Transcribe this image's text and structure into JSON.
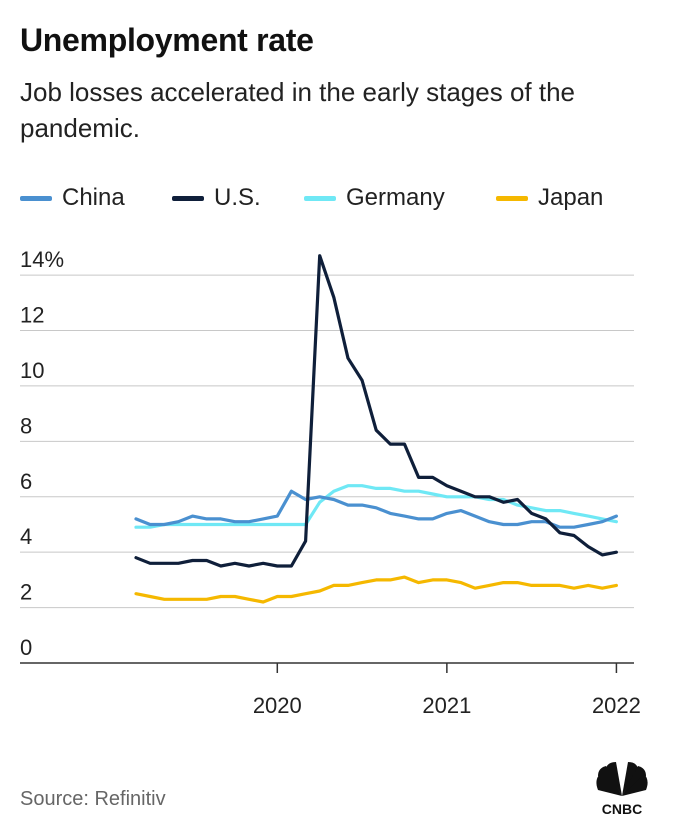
{
  "header": {
    "title": "Unemployment rate",
    "subtitle": "Job losses accelerated in the early stages of the pandemic."
  },
  "footer": {
    "source": "Source: Refinitiv",
    "logo_text": "CNBC"
  },
  "chart_data": {
    "type": "line",
    "title": "Unemployment rate",
    "subtitle": "Job losses accelerated in the early stages of the pandemic.",
    "x_unit": "month",
    "x": [
      "2019-03",
      "2019-04",
      "2019-05",
      "2019-06",
      "2019-07",
      "2019-08",
      "2019-09",
      "2019-10",
      "2019-11",
      "2019-12",
      "2020-01",
      "2020-02",
      "2020-03",
      "2020-04",
      "2020-05",
      "2020-06",
      "2020-07",
      "2020-08",
      "2020-09",
      "2020-10",
      "2020-11",
      "2020-12",
      "2021-01",
      "2021-02",
      "2021-03",
      "2021-04",
      "2021-05",
      "2021-06",
      "2021-07",
      "2021-08",
      "2021-09",
      "2021-10",
      "2021-11",
      "2021-12",
      "2022-01"
    ],
    "x_ticks": [
      {
        "value": "2020-01",
        "label": "2020"
      },
      {
        "value": "2021-01",
        "label": "2021"
      },
      {
        "value": "2022-01",
        "label": "2022"
      }
    ],
    "y_ticks": [
      0,
      2,
      4,
      6,
      8,
      10,
      12,
      14
    ],
    "y_tick_labels": [
      "0",
      "2",
      "4",
      "6",
      "8",
      "10",
      "12",
      "14%"
    ],
    "ylim": [
      0,
      14.4
    ],
    "grid": true,
    "legend_position": "top",
    "series": [
      {
        "name": "China",
        "color": "#4a90d0",
        "values": [
          5.2,
          5.0,
          5.0,
          5.1,
          5.3,
          5.2,
          5.2,
          5.1,
          5.1,
          5.2,
          5.3,
          6.2,
          5.9,
          6.0,
          5.9,
          5.7,
          5.7,
          5.6,
          5.4,
          5.3,
          5.2,
          5.2,
          5.4,
          5.5,
          5.3,
          5.1,
          5.0,
          5.0,
          5.1,
          5.1,
          4.9,
          4.9,
          5.0,
          5.1,
          5.3
        ]
      },
      {
        "name": "U.S.",
        "color": "#0f1f3a",
        "values": [
          3.8,
          3.6,
          3.6,
          3.6,
          3.7,
          3.7,
          3.5,
          3.6,
          3.5,
          3.6,
          3.5,
          3.5,
          4.4,
          14.7,
          13.2,
          11.0,
          10.2,
          8.4,
          7.9,
          7.9,
          6.7,
          6.7,
          6.4,
          6.2,
          6.0,
          6.0,
          5.8,
          5.9,
          5.4,
          5.2,
          4.7,
          4.6,
          4.2,
          3.9,
          4.0
        ]
      },
      {
        "name": "Germany",
        "color": "#6fe8f5",
        "values": [
          4.9,
          4.9,
          5.0,
          5.0,
          5.0,
          5.0,
          5.0,
          5.0,
          5.0,
          5.0,
          5.0,
          5.0,
          5.0,
          5.8,
          6.2,
          6.4,
          6.4,
          6.3,
          6.3,
          6.2,
          6.2,
          6.1,
          6.0,
          6.0,
          6.0,
          5.9,
          5.9,
          5.7,
          5.6,
          5.5,
          5.5,
          5.4,
          5.3,
          5.2,
          5.1
        ]
      },
      {
        "name": "Japan",
        "color": "#f5b800",
        "values": [
          2.5,
          2.4,
          2.3,
          2.3,
          2.3,
          2.3,
          2.4,
          2.4,
          2.3,
          2.2,
          2.4,
          2.4,
          2.5,
          2.6,
          2.8,
          2.8,
          2.9,
          3.0,
          3.0,
          3.1,
          2.9,
          3.0,
          3.0,
          2.9,
          2.7,
          2.8,
          2.9,
          2.9,
          2.8,
          2.8,
          2.8,
          2.7,
          2.8,
          2.7,
          2.8
        ]
      }
    ]
  }
}
